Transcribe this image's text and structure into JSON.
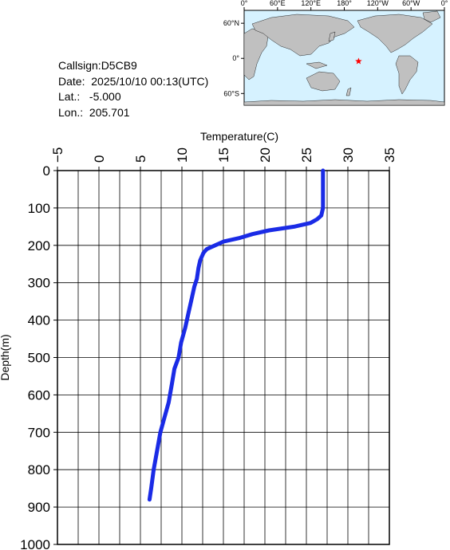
{
  "info": {
    "callsign": "Callsign:D5CB9",
    "date": "Date:  2025/10/10 00:13(UTC)",
    "lat": "Lat.:   -5.000",
    "lon": "Lon.:  205.701"
  },
  "map": {
    "top_labels": [
      "0°",
      "60°E",
      "120°E",
      "180°",
      "120°W",
      "60°W",
      "0°"
    ],
    "left_labels": [
      "60°N",
      "0°",
      "60°S"
    ],
    "ocean_color": "#d6f2ff",
    "land_color": "#c0c0c0",
    "marker_color": "#ff0000",
    "marker_icon": "star-icon",
    "station": {
      "lat": -5.0,
      "lon": 205.701
    }
  },
  "chart_data": {
    "type": "line",
    "title": "",
    "xlabel": "Temperature(C)",
    "ylabel": "Depth(m)",
    "xlim": [
      -5,
      35
    ],
    "ylim": [
      0,
      1000
    ],
    "y_inverted": true,
    "x_axis_position": "top",
    "x_ticks": [
      "-5",
      "0",
      "5",
      "10",
      "15",
      "20",
      "25",
      "30",
      "35"
    ],
    "y_ticks": [
      "0",
      "100",
      "200",
      "300",
      "400",
      "500",
      "600",
      "700",
      "800",
      "900",
      "1000"
    ],
    "grid": true,
    "line_color": "#1a2be6",
    "series": [
      {
        "name": "",
        "points": [
          [
            27.0,
            0
          ],
          [
            27.0,
            50
          ],
          [
            27.0,
            100
          ],
          [
            26.8,
            120
          ],
          [
            26.3,
            130
          ],
          [
            25.5,
            140
          ],
          [
            23.5,
            150
          ],
          [
            20.5,
            160
          ],
          [
            18.5,
            170
          ],
          [
            17.0,
            180
          ],
          [
            15.0,
            190
          ],
          [
            14.0,
            200
          ],
          [
            13.0,
            210
          ],
          [
            12.6,
            220
          ],
          [
            12.2,
            240
          ],
          [
            12.0,
            260
          ],
          [
            11.8,
            290
          ],
          [
            11.5,
            310
          ],
          [
            11.2,
            340
          ],
          [
            10.8,
            380
          ],
          [
            10.4,
            420
          ],
          [
            9.9,
            460
          ],
          [
            9.6,
            500
          ],
          [
            9.1,
            530
          ],
          [
            8.8,
            570
          ],
          [
            8.4,
            620
          ],
          [
            7.9,
            660
          ],
          [
            7.4,
            700
          ],
          [
            7.0,
            750
          ],
          [
            6.6,
            800
          ],
          [
            6.3,
            850
          ],
          [
            6.1,
            880
          ]
        ]
      }
    ]
  }
}
